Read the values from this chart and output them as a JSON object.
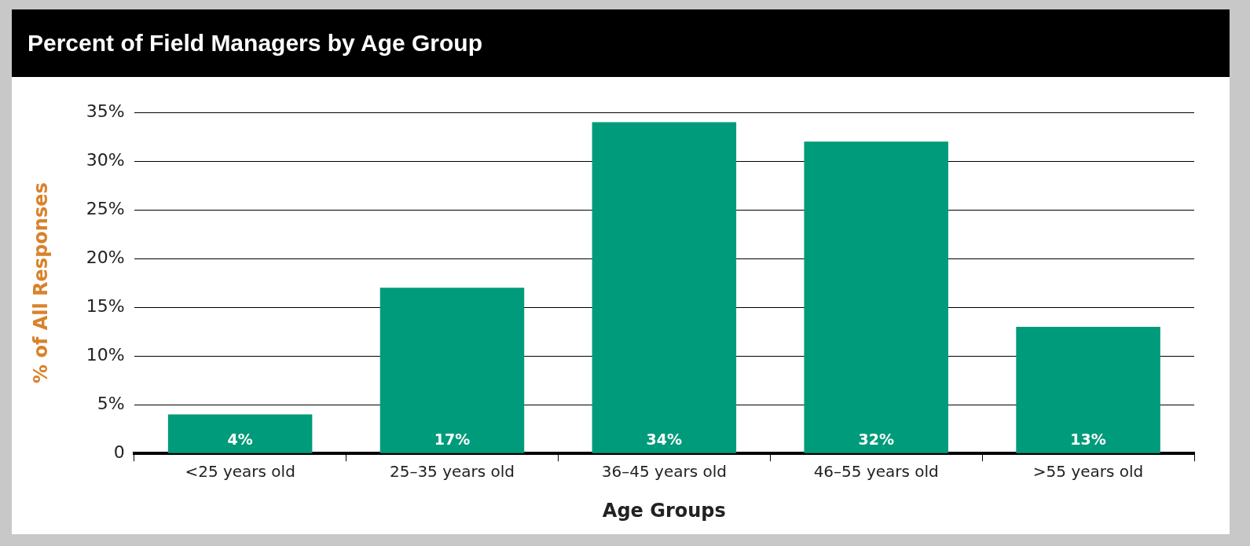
{
  "chart_data": {
    "type": "bar",
    "title": "Percent of Field Managers by Age Group",
    "xlabel": "Age Groups",
    "ylabel": "% of All Responses",
    "categories": [
      "<25 years old",
      "25–35 years old",
      "36–45 years old",
      "46–55 years old",
      ">55 years old"
    ],
    "values": [
      4,
      17,
      34,
      32,
      13
    ],
    "value_labels": [
      "4%",
      "17%",
      "34%",
      "32%",
      "13%"
    ],
    "color": "#009b7a",
    "ylim": [
      0,
      35
    ],
    "yticks": [
      0,
      {
        "value": 5,
        "label": "5%"
      },
      {
        "value": 10,
        "label": "10%"
      },
      {
        "value": 15,
        "label": "15%"
      },
      {
        "value": 20,
        "label": "20%"
      },
      {
        "value": 25,
        "label": "25%"
      },
      {
        "value": 30,
        "label": "30%"
      },
      {
        "value": 35,
        "label": "35%"
      }
    ],
    "grid": "y",
    "legend": false
  }
}
